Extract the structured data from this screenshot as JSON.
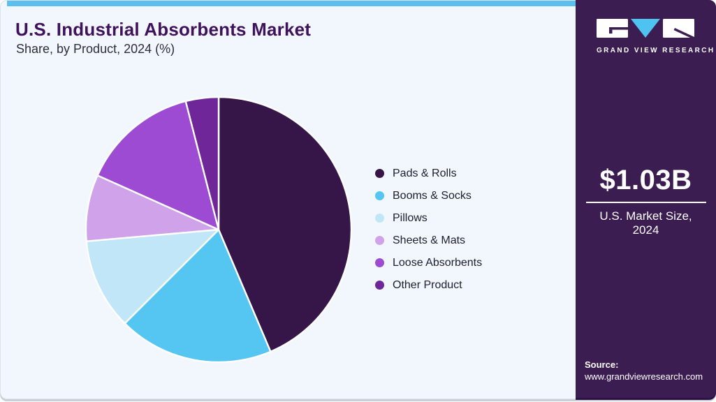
{
  "header": {
    "title": "U.S. Industrial Absorbents Market",
    "subtitle": "Share, by Product, 2024 (%)"
  },
  "chart_data": {
    "type": "pie",
    "title": "U.S. Industrial Absorbents Market Share, by Product, 2024 (%)",
    "categories": [
      "Pads & Rolls",
      "Booms & Socks",
      "Pillows",
      "Sheets & Mats",
      "Loose Absorbents",
      "Other Product"
    ],
    "values": [
      43.6,
      18.9,
      11.1,
      8.1,
      14.3,
      4.0
    ],
    "colors": [
      "#361549",
      "#55c6f2",
      "#c1e6f8",
      "#d0a2e9",
      "#9d4bd3",
      "#6e2699"
    ],
    "unit": "%",
    "start_angle_deg": 0,
    "direction": "clockwise",
    "legend_position": "right",
    "slice_divider_color": "#ffffff"
  },
  "sidebar": {
    "logo": {
      "icon": "gvr-logo-icon",
      "caption": "GRAND VIEW RESEARCH",
      "v_color": "#4ec3f0"
    },
    "market_size": {
      "value": "$1.03B",
      "label_line1": "U.S. Market Size,",
      "label_line2": "2024"
    },
    "source": {
      "label": "Source:",
      "url": "www.grandviewresearch.com"
    }
  },
  "theme": {
    "accent_blue": "#5bc0ee",
    "sidebar_purple": "#3b1d51",
    "title_purple": "#3f125c",
    "card_background": "#f1f7fc"
  }
}
